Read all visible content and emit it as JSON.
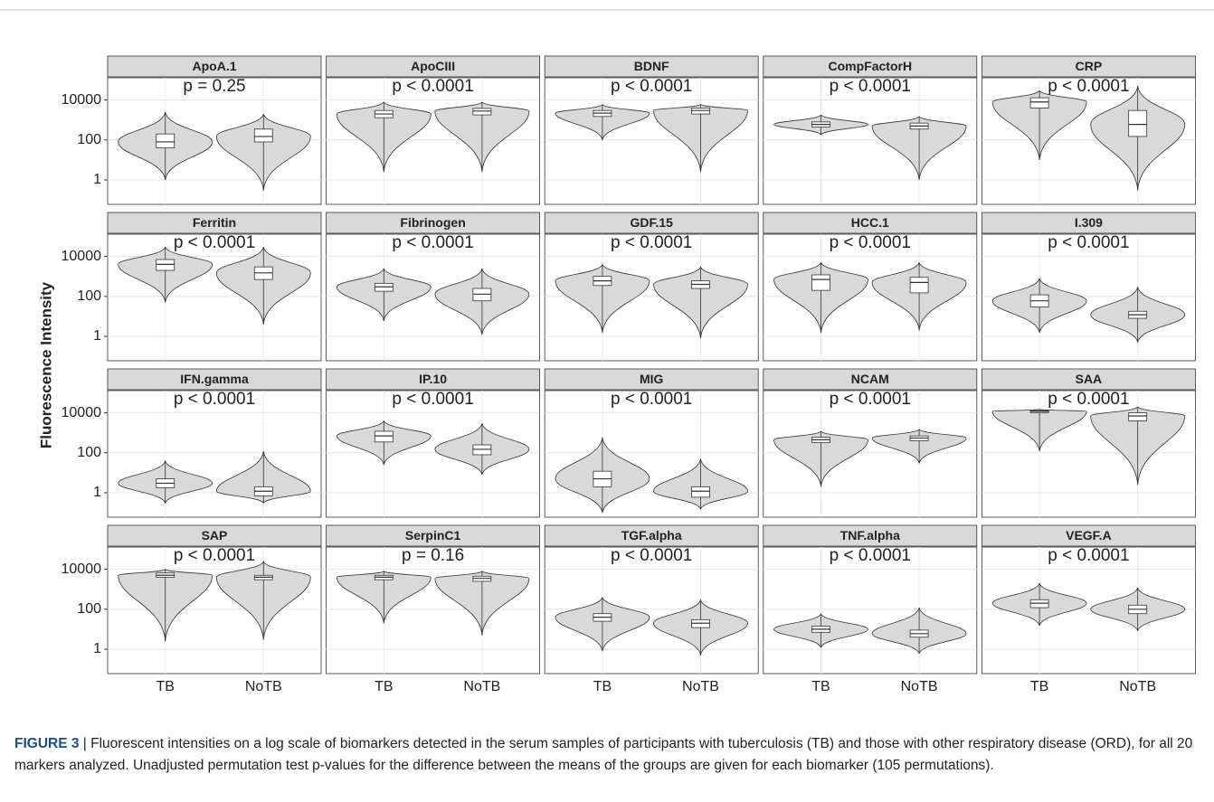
{
  "chart_data": {
    "type": "violin",
    "ylabel": "Fluorescence Intensity",
    "log_scale": true,
    "grid": true,
    "violin_color": "#d9d9d9",
    "box_color": "#ffffff",
    "categories": [
      "TB",
      "NoTB"
    ],
    "ylim": [
      0.06,
      130000
    ],
    "yticks": [
      1,
      100,
      10000
    ],
    "panels": [
      {
        "title": "ApoA.1",
        "annotation": "p = 0.25",
        "median": [
          80,
          150
        ],
        "q1": [
          40,
          80
        ],
        "q3": [
          200,
          350
        ],
        "min": [
          1,
          0.3
        ],
        "max": [
          2500,
          2000
        ]
      },
      {
        "title": "ApoCIII",
        "annotation": "p < 0.0001",
        "median": [
          2000,
          2800
        ],
        "q1": [
          1300,
          1800
        ],
        "q3": [
          3000,
          3800
        ],
        "min": [
          2.5,
          2.5
        ],
        "max": [
          8000,
          8000
        ]
      },
      {
        "title": "BDNF",
        "annotation": "p < 0.0001",
        "median": [
          2200,
          3000
        ],
        "q1": [
          1500,
          2000
        ],
        "q3": [
          3000,
          4000
        ],
        "min": [
          100,
          2.5
        ],
        "max": [
          6000,
          6000
        ]
      },
      {
        "title": "CompFactorH",
        "annotation": "p < 0.0001",
        "median": [
          600,
          500
        ],
        "q1": [
          450,
          350
        ],
        "q3": [
          800,
          700
        ],
        "min": [
          180,
          1
        ],
        "max": [
          1800,
          1500
        ]
      },
      {
        "title": "CRP",
        "annotation": "p < 0.0001",
        "median": [
          8000,
          600
        ],
        "q1": [
          4000,
          150
        ],
        "q3": [
          13000,
          3000
        ],
        "min": [
          10,
          0.3
        ],
        "max": [
          30000,
          50000
        ]
      },
      {
        "title": "Ferritin",
        "annotation": "p < 0.0001",
        "median": [
          4000,
          1500
        ],
        "q1": [
          2000,
          700
        ],
        "q3": [
          7000,
          3000
        ],
        "min": [
          50,
          4
        ],
        "max": [
          30000,
          30000
        ]
      },
      {
        "title": "Fibrinogen",
        "annotation": "p < 0.0001",
        "median": [
          300,
          130
        ],
        "q1": [
          180,
          60
        ],
        "q3": [
          450,
          250
        ],
        "min": [
          6,
          1.2
        ],
        "max": [
          2500,
          2500
        ]
      },
      {
        "title": "GDF.15",
        "annotation": "p < 0.0001",
        "median": [
          600,
          400
        ],
        "q1": [
          350,
          250
        ],
        "q3": [
          1000,
          600
        ],
        "min": [
          1.5,
          0.8
        ],
        "max": [
          4000,
          3000
        ]
      },
      {
        "title": "HCC.1",
        "annotation": "p < 0.0001",
        "median": [
          700,
          500
        ],
        "q1": [
          200,
          150
        ],
        "q3": [
          1200,
          900
        ],
        "min": [
          1.5,
          2
        ],
        "max": [
          5000,
          5000
        ]
      },
      {
        "title": "I.309",
        "annotation": "p < 0.0001",
        "median": [
          60,
          12
        ],
        "q1": [
          30,
          8
        ],
        "q3": [
          120,
          18
        ],
        "min": [
          1.5,
          0.5
        ],
        "max": [
          800,
          300
        ]
      },
      {
        "title": "IFN.gamma",
        "annotation": "p < 0.0001",
        "median": [
          3,
          1.2
        ],
        "q1": [
          1.8,
          0.7
        ],
        "q3": [
          5,
          2
        ],
        "min": [
          0.3,
          0.3
        ],
        "max": [
          40,
          120
        ]
      },
      {
        "title": "IP.10",
        "annotation": "p < 0.0001",
        "median": [
          700,
          150
        ],
        "q1": [
          350,
          80
        ],
        "q3": [
          1200,
          250
        ],
        "min": [
          25,
          8
        ],
        "max": [
          4000,
          3000
        ]
      },
      {
        "title": "MIG",
        "annotation": "p < 0.0001",
        "median": [
          5,
          1.2
        ],
        "q1": [
          2,
          0.6
        ],
        "q3": [
          12,
          2
        ],
        "min": [
          0.1,
          0.15
        ],
        "max": [
          600,
          50
        ]
      },
      {
        "title": "NCAM",
        "annotation": "p < 0.0001",
        "median": [
          450,
          550
        ],
        "q1": [
          330,
          400
        ],
        "q3": [
          600,
          700
        ],
        "min": [
          2,
          30
        ],
        "max": [
          1200,
          1500
        ]
      },
      {
        "title": "SAA",
        "annotation": "p < 0.0001",
        "median": [
          12000,
          7000
        ],
        "q1": [
          10000,
          4000
        ],
        "q3": [
          13000,
          10000
        ],
        "min": [
          120,
          2.5
        ],
        "max": [
          15000,
          20000
        ]
      },
      {
        "title": "SAP",
        "annotation": "p < 0.0001",
        "median": [
          5000,
          4000
        ],
        "q1": [
          4000,
          3000
        ],
        "q3": [
          6500,
          5000
        ],
        "min": [
          2.5,
          3
        ],
        "max": [
          10000,
          25000
        ]
      },
      {
        "title": "SerpinC1",
        "annotation": "p = 0.16",
        "median": [
          4000,
          3500
        ],
        "q1": [
          3000,
          2500
        ],
        "q3": [
          5000,
          4500
        ],
        "min": [
          20,
          5
        ],
        "max": [
          8000,
          8000
        ]
      },
      {
        "title": "TGF.alpha",
        "annotation": "p < 0.0001",
        "median": [
          40,
          20
        ],
        "q1": [
          25,
          12
        ],
        "q3": [
          60,
          30
        ],
        "min": [
          0.8,
          0.5
        ],
        "max": [
          400,
          300
        ]
      },
      {
        "title": "TNF.alpha",
        "annotation": "p < 0.0001",
        "median": [
          10,
          6
        ],
        "q1": [
          7,
          4
        ],
        "q3": [
          14,
          9
        ],
        "min": [
          1.2,
          0.6
        ],
        "max": [
          60,
          120
        ]
      },
      {
        "title": "VEGF.A",
        "annotation": "p < 0.0001",
        "median": [
          200,
          100
        ],
        "q1": [
          120,
          60
        ],
        "q3": [
          300,
          160
        ],
        "min": [
          15,
          8
        ],
        "max": [
          2000,
          1200
        ]
      }
    ]
  },
  "caption": {
    "label": "FIGURE 3",
    "text": "| Fluorescent intensities on a log scale of biomarkers detected in the serum samples of participants with tuberculosis (TB) and those with other respiratory disease (ORD), for all 20 markers analyzed. Unadjusted permutation test p-values for the difference between the means of the groups are given for each biomarker (105 permutations)."
  }
}
